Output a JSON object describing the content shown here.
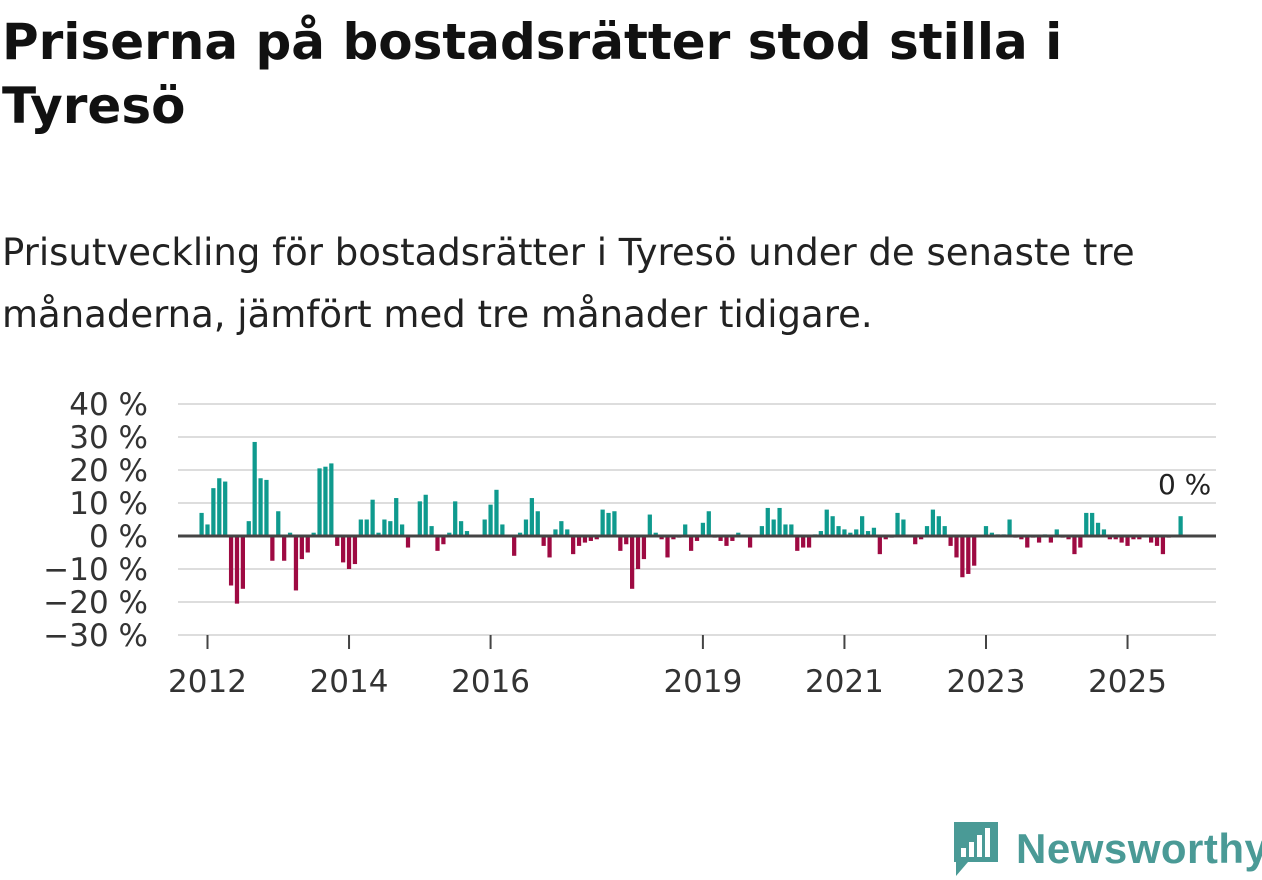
{
  "title": "Priserna på bostadsrätter stod stilla i Tyresö",
  "subtitle": "Prisutveckling för bostadsrätter i Tyresö under de senaste tre månaderna, jämfört med tre månader tidigare.",
  "brand": {
    "name": "Newsworthy",
    "color": "#4a9a96"
  },
  "colors": {
    "positive": "#0f9a8e",
    "negative": "#9e0a42",
    "grid": "#dddddd",
    "zero": "#444444"
  },
  "chart_data": {
    "type": "bar",
    "x_start": "2011-08",
    "x_end": "2026-04",
    "ylim": [
      -30,
      40
    ],
    "y_ticks": [
      {
        "value": 40,
        "label": "40 %"
      },
      {
        "value": 30,
        "label": "30 %"
      },
      {
        "value": 20,
        "label": "20 %"
      },
      {
        "value": 10,
        "label": "10 %"
      },
      {
        "value": 0,
        "label": "0 %"
      },
      {
        "value": -10,
        "label": "−10 %"
      },
      {
        "value": -20,
        "label": "−20 %"
      },
      {
        "value": -30,
        "label": "−30 %"
      }
    ],
    "x_ticks": [
      {
        "year": 2012,
        "label": "2012"
      },
      {
        "year": 2014,
        "label": "2014"
      },
      {
        "year": 2016,
        "label": "2016"
      },
      {
        "year": 2019,
        "label": "2019"
      },
      {
        "year": 2021,
        "label": "2021"
      },
      {
        "year": 2023,
        "label": "2023"
      },
      {
        "year": 2025,
        "label": "2025"
      }
    ],
    "annotation": "0 %",
    "series": [
      {
        "name": "Prisutveckling",
        "start": "2011-12",
        "values": [
          7,
          3.5,
          14.5,
          17.5,
          16.5,
          -15,
          -20.5,
          -16,
          4.5,
          28.5,
          17.5,
          17,
          -7.5,
          7.5,
          -7.5,
          1,
          -16.5,
          -7,
          -5,
          1,
          20.5,
          21,
          22,
          -3,
          -8,
          -10,
          -8.5,
          5,
          5,
          11,
          1,
          5,
          4.5,
          11.5,
          3.5,
          -3.5,
          0,
          10.5,
          12.5,
          3,
          -4.5,
          -2.5,
          1,
          10.5,
          4.5,
          1.5,
          0,
          0,
          5,
          9.5,
          14,
          3.5,
          0,
          -6,
          1,
          5,
          11.5,
          7.5,
          -3,
          -6.5,
          2,
          4.5,
          2,
          -5.5,
          -3,
          -2,
          -1.5,
          -1,
          8,
          7,
          7.5,
          -4.5,
          -2.5,
          -16,
          -10,
          -7,
          6.5,
          1,
          -1,
          -6.5,
          -1,
          -0.5,
          3.5,
          -4.5,
          -1.5,
          4,
          7.5,
          -0.5,
          -1.5,
          -3,
          -1.5,
          1,
          0,
          -3.5,
          0,
          3,
          8.5,
          5,
          8.5,
          3.5,
          3.5,
          -4.5,
          -3.5,
          -3.5,
          0.5,
          1.5,
          8,
          6,
          3,
          2,
          1,
          2,
          6,
          1.5,
          2.5,
          -5.5,
          -1,
          -0.5,
          7,
          5,
          0,
          -2.5,
          -1,
          3,
          8,
          6,
          3,
          -3,
          -6.5,
          -12.5,
          -11.5,
          -9,
          0,
          3,
          1,
          0.5,
          0.5,
          5,
          -0.5,
          -1,
          -3.5,
          -0.5,
          -2,
          0.5,
          -2,
          2,
          -0.5,
          -1,
          -5.5,
          -3.5,
          7,
          7,
          4,
          2,
          -1,
          -1,
          -2,
          -3,
          -1,
          -1,
          0,
          -2,
          -3,
          -5.5,
          -0.5,
          0,
          6
        ]
      }
    ]
  }
}
